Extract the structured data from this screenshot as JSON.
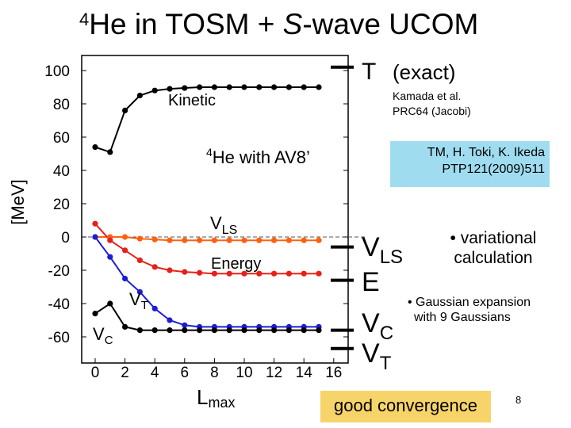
{
  "slide": {
    "title_sup": "4",
    "title_main": "He in TOSM + ",
    "title_italic": "S",
    "title_rest": "-wave UCOM",
    "page_number": "8"
  },
  "annotations": {
    "kinetic": "Kinetic",
    "nucleus_sup": "4",
    "nucleus_text": "He with AV8’",
    "vls_main": "V",
    "vls_sub": "LS",
    "energy": "Energy",
    "vt_main": "V",
    "vt_sub": "T",
    "vc_main": "V",
    "vc_sub": "C"
  },
  "exact_labels": {
    "t_main": "T",
    "t_note": "(exact)",
    "vls_main": "V",
    "vls_sub": "LS",
    "e_main": "E",
    "vc_main": "V",
    "vc_sub": "C",
    "vt_main": "V",
    "vt_sub": "T"
  },
  "references": {
    "kamada_line1": "Kamada et al.",
    "kamada_line2": "PRC64  (Jacobi)",
    "tm_line1": "TM, H. Toki, K. Ikeda",
    "tm_line2": "PTP121(2009)511"
  },
  "bullets": {
    "variational_line1": "• variational",
    "variational_line2": "calculation",
    "gaussian_line1": "• Gaussian expansion",
    "gaussian_line2": "with 9 Gaussians"
  },
  "conclusion": "good convergence",
  "colors": {
    "kinetic": "#000000",
    "vls": "#ff6010",
    "energy": "#e8201a",
    "vt": "#1c1cd8",
    "vc": "#000000",
    "tm_box": "#9fdcf0",
    "good_box": "#f7d46a"
  },
  "chart_data": {
    "type": "line",
    "ylabel": "[MeV]",
    "xlabel_main": "L",
    "xlabel_sub": "max",
    "xlim": [
      0,
      16
    ],
    "ylim": [
      -70,
      110
    ],
    "xticks": [
      0,
      2,
      4,
      6,
      8,
      10,
      12,
      14,
      16
    ],
    "yticks": [
      100,
      80,
      60,
      40,
      20,
      0,
      -20,
      -40,
      -60
    ],
    "series": [
      {
        "key": "kinetic",
        "values": [
          [
            0,
            54
          ],
          [
            1,
            51
          ],
          [
            2,
            76
          ],
          [
            3,
            85
          ],
          [
            4,
            88
          ],
          [
            5,
            89
          ],
          [
            6,
            89.5
          ],
          [
            7,
            90
          ],
          [
            8,
            90
          ],
          [
            9,
            90
          ],
          [
            10,
            90
          ],
          [
            11,
            90
          ],
          [
            12,
            90
          ],
          [
            13,
            90
          ],
          [
            14,
            90
          ],
          [
            15,
            90
          ]
        ]
      },
      {
        "key": "vls",
        "values": [
          [
            0,
            0
          ],
          [
            1,
            0
          ],
          [
            2,
            0
          ],
          [
            3,
            -1
          ],
          [
            4,
            -1.5
          ],
          [
            5,
            -2
          ],
          [
            6,
            -2
          ],
          [
            7,
            -2
          ],
          [
            8,
            -2
          ],
          [
            9,
            -2
          ],
          [
            10,
            -2
          ],
          [
            11,
            -2
          ],
          [
            12,
            -2
          ],
          [
            13,
            -2
          ],
          [
            14,
            -2
          ],
          [
            15,
            -2
          ]
        ]
      },
      {
        "key": "energy",
        "values": [
          [
            0,
            8
          ],
          [
            1,
            -2
          ],
          [
            2,
            -8
          ],
          [
            3,
            -14
          ],
          [
            4,
            -18
          ],
          [
            5,
            -20
          ],
          [
            6,
            -21
          ],
          [
            7,
            -21.5
          ],
          [
            8,
            -22
          ],
          [
            9,
            -22
          ],
          [
            10,
            -22
          ],
          [
            11,
            -22
          ],
          [
            12,
            -22
          ],
          [
            13,
            -22
          ],
          [
            14,
            -22
          ],
          [
            15,
            -22
          ]
        ]
      },
      {
        "key": "vt",
        "values": [
          [
            0,
            0
          ],
          [
            1,
            -12
          ],
          [
            2,
            -25
          ],
          [
            3,
            -33
          ],
          [
            4,
            -43
          ],
          [
            5,
            -50
          ],
          [
            6,
            -53
          ],
          [
            7,
            -54
          ],
          [
            8,
            -54
          ],
          [
            9,
            -54
          ],
          [
            10,
            -54
          ],
          [
            11,
            -54
          ],
          [
            12,
            -54
          ],
          [
            13,
            -54
          ],
          [
            14,
            -54
          ],
          [
            15,
            -54
          ]
        ]
      },
      {
        "key": "vc",
        "values": [
          [
            0,
            -46
          ],
          [
            1,
            -40
          ],
          [
            2,
            -54
          ],
          [
            3,
            -56
          ],
          [
            4,
            -56
          ],
          [
            5,
            -56
          ],
          [
            6,
            -56
          ],
          [
            7,
            -56
          ],
          [
            8,
            -56
          ],
          [
            9,
            -56
          ],
          [
            10,
            -56
          ],
          [
            11,
            -56
          ],
          [
            12,
            -56
          ],
          [
            13,
            -56
          ],
          [
            14,
            -56
          ],
          [
            15,
            -56
          ]
        ]
      }
    ],
    "exact_values": {
      "T": 102,
      "VLS": -6,
      "E": -26,
      "VC": -56,
      "VT": -67
    },
    "dashed_zero_line": true
  }
}
